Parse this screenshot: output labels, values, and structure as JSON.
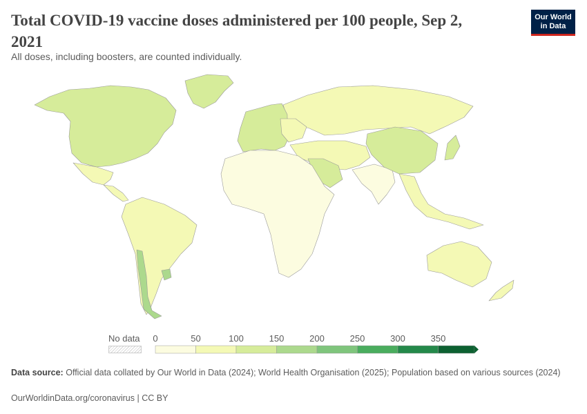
{
  "header": {
    "title": "Total COVID-19 vaccine doses administered per 100 people, Sep 2, 2021",
    "subtitle": "All doses, including boosters, are counted individually.",
    "logo_line1": "Our World",
    "logo_line2": "in Data"
  },
  "legend": {
    "no_data_label": "No data",
    "ticks": [
      "0",
      "50",
      "100",
      "150",
      "200",
      "250",
      "300",
      "350"
    ],
    "bins": [
      {
        "min": 0,
        "max": 50,
        "color": "#fcfce0"
      },
      {
        "min": 50,
        "max": 100,
        "color": "#f4f9b5"
      },
      {
        "min": 100,
        "max": 150,
        "color": "#d6ec9a"
      },
      {
        "min": 150,
        "max": 200,
        "color": "#acd98d"
      },
      {
        "min": 200,
        "max": 250,
        "color": "#7fc57c"
      },
      {
        "min": 250,
        "max": 300,
        "color": "#4aad5e"
      },
      {
        "min": 300,
        "max": 350,
        "color": "#24894a"
      },
      {
        "min": 350,
        "max": 400,
        "color": "#0d6131"
      }
    ]
  },
  "map_data": {
    "regions": [
      {
        "name": "North America",
        "bin": 2
      },
      {
        "name": "Greenland",
        "bin": 2
      },
      {
        "name": "Mexico",
        "bin": 1
      },
      {
        "name": "Central America",
        "bin": 1
      },
      {
        "name": "South America",
        "bin": 1
      },
      {
        "name": "Chile",
        "bin": 3
      },
      {
        "name": "Uruguay",
        "bin": 3
      },
      {
        "name": "Western Europe",
        "bin": 2
      },
      {
        "name": "Eastern Europe",
        "bin": 1
      },
      {
        "name": "Russia",
        "bin": 1
      },
      {
        "name": "Middle East",
        "bin": 1
      },
      {
        "name": "Saudi Arabia",
        "bin": 2
      },
      {
        "name": "Africa",
        "bin": 0
      },
      {
        "name": "South Asia",
        "bin": 0
      },
      {
        "name": "China",
        "bin": 2
      },
      {
        "name": "Japan",
        "bin": 2
      },
      {
        "name": "Southeast Asia",
        "bin": 1
      },
      {
        "name": "Australia",
        "bin": 1
      },
      {
        "name": "New Zealand",
        "bin": 1
      }
    ]
  },
  "footer": {
    "source_label": "Data source:",
    "source_text": "Official data collated by Our World in Data (2024); World Health Organisation (2025); Population based on various sources (2024)",
    "url": "OurWorldinData.org/coronavirus | CC BY"
  }
}
